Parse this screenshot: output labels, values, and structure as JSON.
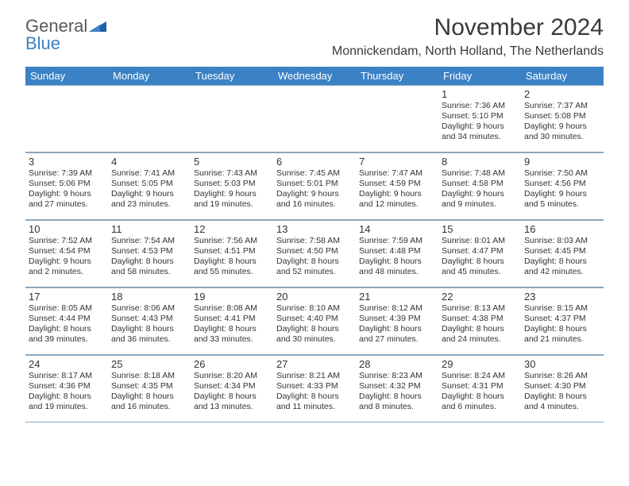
{
  "logo": {
    "line1": "General",
    "line2": "Blue"
  },
  "title": "November 2024",
  "location": "Monnickendam, North Holland, The Netherlands",
  "header_bg": "#3b82c4",
  "days_of_week": [
    "Sunday",
    "Monday",
    "Tuesday",
    "Wednesday",
    "Thursday",
    "Friday",
    "Saturday"
  ],
  "weeks": [
    [
      null,
      null,
      null,
      null,
      null,
      {
        "n": "1",
        "sr": "7:36 AM",
        "ss": "5:10 PM",
        "dl": "9 hours and 34 minutes."
      },
      {
        "n": "2",
        "sr": "7:37 AM",
        "ss": "5:08 PM",
        "dl": "9 hours and 30 minutes."
      }
    ],
    [
      {
        "n": "3",
        "sr": "7:39 AM",
        "ss": "5:06 PM",
        "dl": "9 hours and 27 minutes."
      },
      {
        "n": "4",
        "sr": "7:41 AM",
        "ss": "5:05 PM",
        "dl": "9 hours and 23 minutes."
      },
      {
        "n": "5",
        "sr": "7:43 AM",
        "ss": "5:03 PM",
        "dl": "9 hours and 19 minutes."
      },
      {
        "n": "6",
        "sr": "7:45 AM",
        "ss": "5:01 PM",
        "dl": "9 hours and 16 minutes."
      },
      {
        "n": "7",
        "sr": "7:47 AM",
        "ss": "4:59 PM",
        "dl": "9 hours and 12 minutes."
      },
      {
        "n": "8",
        "sr": "7:48 AM",
        "ss": "4:58 PM",
        "dl": "9 hours and 9 minutes."
      },
      {
        "n": "9",
        "sr": "7:50 AM",
        "ss": "4:56 PM",
        "dl": "9 hours and 5 minutes."
      }
    ],
    [
      {
        "n": "10",
        "sr": "7:52 AM",
        "ss": "4:54 PM",
        "dl": "9 hours and 2 minutes."
      },
      {
        "n": "11",
        "sr": "7:54 AM",
        "ss": "4:53 PM",
        "dl": "8 hours and 58 minutes."
      },
      {
        "n": "12",
        "sr": "7:56 AM",
        "ss": "4:51 PM",
        "dl": "8 hours and 55 minutes."
      },
      {
        "n": "13",
        "sr": "7:58 AM",
        "ss": "4:50 PM",
        "dl": "8 hours and 52 minutes."
      },
      {
        "n": "14",
        "sr": "7:59 AM",
        "ss": "4:48 PM",
        "dl": "8 hours and 48 minutes."
      },
      {
        "n": "15",
        "sr": "8:01 AM",
        "ss": "4:47 PM",
        "dl": "8 hours and 45 minutes."
      },
      {
        "n": "16",
        "sr": "8:03 AM",
        "ss": "4:45 PM",
        "dl": "8 hours and 42 minutes."
      }
    ],
    [
      {
        "n": "17",
        "sr": "8:05 AM",
        "ss": "4:44 PM",
        "dl": "8 hours and 39 minutes."
      },
      {
        "n": "18",
        "sr": "8:06 AM",
        "ss": "4:43 PM",
        "dl": "8 hours and 36 minutes."
      },
      {
        "n": "19",
        "sr": "8:08 AM",
        "ss": "4:41 PM",
        "dl": "8 hours and 33 minutes."
      },
      {
        "n": "20",
        "sr": "8:10 AM",
        "ss": "4:40 PM",
        "dl": "8 hours and 30 minutes."
      },
      {
        "n": "21",
        "sr": "8:12 AM",
        "ss": "4:39 PM",
        "dl": "8 hours and 27 minutes."
      },
      {
        "n": "22",
        "sr": "8:13 AM",
        "ss": "4:38 PM",
        "dl": "8 hours and 24 minutes."
      },
      {
        "n": "23",
        "sr": "8:15 AM",
        "ss": "4:37 PM",
        "dl": "8 hours and 21 minutes."
      }
    ],
    [
      {
        "n": "24",
        "sr": "8:17 AM",
        "ss": "4:36 PM",
        "dl": "8 hours and 19 minutes."
      },
      {
        "n": "25",
        "sr": "8:18 AM",
        "ss": "4:35 PM",
        "dl": "8 hours and 16 minutes."
      },
      {
        "n": "26",
        "sr": "8:20 AM",
        "ss": "4:34 PM",
        "dl": "8 hours and 13 minutes."
      },
      {
        "n": "27",
        "sr": "8:21 AM",
        "ss": "4:33 PM",
        "dl": "8 hours and 11 minutes."
      },
      {
        "n": "28",
        "sr": "8:23 AM",
        "ss": "4:32 PM",
        "dl": "8 hours and 8 minutes."
      },
      {
        "n": "29",
        "sr": "8:24 AM",
        "ss": "4:31 PM",
        "dl": "8 hours and 6 minutes."
      },
      {
        "n": "30",
        "sr": "8:26 AM",
        "ss": "4:30 PM",
        "dl": "8 hours and 4 minutes."
      }
    ]
  ],
  "labels": {
    "sunrise": "Sunrise: ",
    "sunset": "Sunset: ",
    "daylight": "Daylight: "
  }
}
